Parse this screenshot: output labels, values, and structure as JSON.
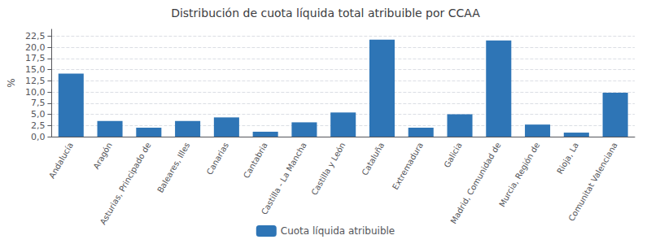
{
  "chart_data": {
    "type": "bar",
    "title": "Distribución de cuota líquida total atribuible por CCAA",
    "categories": [
      "Andalucía",
      "Aragón",
      "Asturias, Principado de",
      "Baleares, Illes",
      "Canarias",
      "Cantabria",
      "Castilla - La Mancha",
      "Castilla y León",
      "Cataluña",
      "Extremadura",
      "Galicia",
      "Madrid, Comunidad de",
      "Murcia, Región de",
      "Rioja, La",
      "Comunitat Valenciana"
    ],
    "series": [
      {
        "name": "Cuota líquida atribuible",
        "color": "#2E75B6",
        "values": [
          14.1,
          3.5,
          2.0,
          3.5,
          4.3,
          1.1,
          3.2,
          5.4,
          21.7,
          2.0,
          5.0,
          21.5,
          2.7,
          0.9,
          9.8
        ]
      }
    ],
    "ylabel": "%",
    "ylim": [
      0,
      24
    ],
    "yticks": [
      {
        "value": 0,
        "label": "0,0"
      },
      {
        "value": 2.5,
        "label": "2,5"
      },
      {
        "value": 5.0,
        "label": "5,0"
      },
      {
        "value": 7.5,
        "label": "7,5"
      },
      {
        "value": 10.0,
        "label": "10,0"
      },
      {
        "value": 12.5,
        "label": "12,5"
      },
      {
        "value": 15.0,
        "label": "15,0"
      },
      {
        "value": 17.5,
        "label": "17,5"
      },
      {
        "value": 20.0,
        "label": "20,0"
      },
      {
        "value": 22.5,
        "label": "22,5"
      }
    ],
    "grid": true,
    "legend": "bottom"
  }
}
